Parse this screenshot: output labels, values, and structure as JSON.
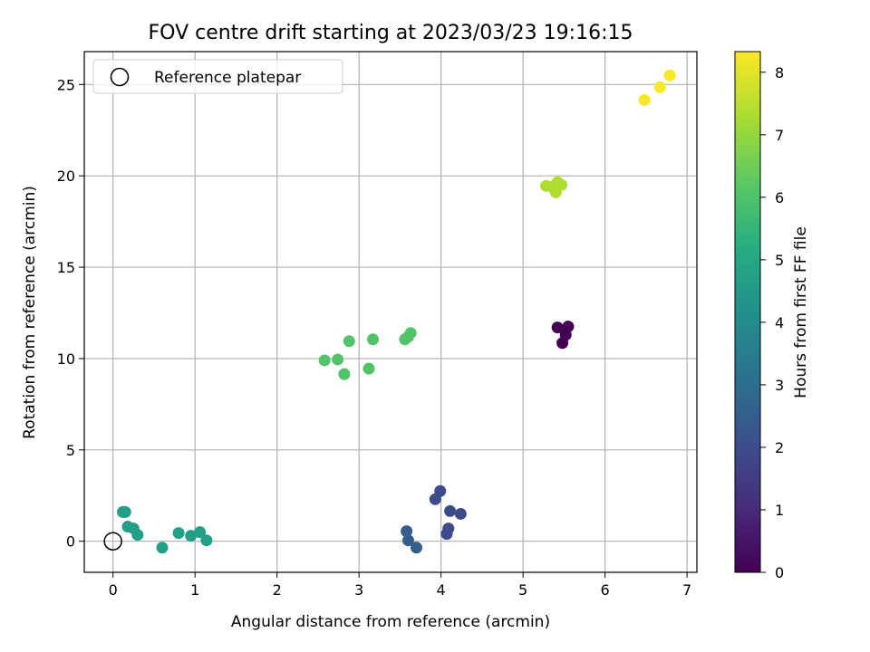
{
  "chart_data": {
    "type": "scatter",
    "title": "FOV centre drift starting at 2023/03/23 19:16:15",
    "xlabel": "Angular distance from reference (arcmin)",
    "ylabel": "Rotation from reference (arcmin)",
    "xlim": [
      -0.35,
      7.12
    ],
    "ylim": [
      -1.7,
      26.8
    ],
    "xticks": [
      0,
      1,
      2,
      3,
      4,
      5,
      6,
      7
    ],
    "yticks": [
      0,
      5,
      10,
      15,
      20,
      25
    ],
    "grid": true,
    "legend": {
      "placement": "top-left",
      "entries": [
        "Reference platepar"
      ]
    },
    "reference_point": {
      "x": 0,
      "y": 0,
      "label": "Reference platepar"
    },
    "colorbar": {
      "label": "Hours from first FF file",
      "colormap": "viridis",
      "range": [
        0,
        8.33
      ],
      "ticks": [
        0,
        1,
        2,
        3,
        4,
        5,
        6,
        7,
        8
      ]
    },
    "points": [
      {
        "x": 5.42,
        "y": 11.7,
        "hours": 0.0
      },
      {
        "x": 5.55,
        "y": 11.75,
        "hours": 0.0
      },
      {
        "x": 5.52,
        "y": 11.3,
        "hours": 0.0
      },
      {
        "x": 5.48,
        "y": 10.85,
        "hours": 0.0
      },
      {
        "x": 3.93,
        "y": 2.3,
        "hours": 1.95
      },
      {
        "x": 3.99,
        "y": 2.75,
        "hours": 1.95
      },
      {
        "x": 4.11,
        "y": 1.65,
        "hours": 1.95
      },
      {
        "x": 4.24,
        "y": 1.5,
        "hours": 1.95
      },
      {
        "x": 4.09,
        "y": 0.7,
        "hours": 1.95
      },
      {
        "x": 4.07,
        "y": 0.4,
        "hours": 1.95
      },
      {
        "x": 3.58,
        "y": 0.55,
        "hours": 2.5
      },
      {
        "x": 3.6,
        "y": 0.05,
        "hours": 2.5
      },
      {
        "x": 3.7,
        "y": -0.35,
        "hours": 2.5
      },
      {
        "x": 0.12,
        "y": 1.6,
        "hours": 4.7
      },
      {
        "x": 0.15,
        "y": 1.6,
        "hours": 4.7
      },
      {
        "x": 0.18,
        "y": 0.8,
        "hours": 4.7
      },
      {
        "x": 0.25,
        "y": 0.7,
        "hours": 4.7
      },
      {
        "x": 0.3,
        "y": 0.35,
        "hours": 4.7
      },
      {
        "x": 0.6,
        "y": -0.35,
        "hours": 4.7
      },
      {
        "x": 0.8,
        "y": 0.45,
        "hours": 4.7
      },
      {
        "x": 0.95,
        "y": 0.3,
        "hours": 4.7
      },
      {
        "x": 1.06,
        "y": 0.5,
        "hours": 4.7
      },
      {
        "x": 1.14,
        "y": 0.05,
        "hours": 4.7
      },
      {
        "x": 2.58,
        "y": 9.9,
        "hours": 6.05
      },
      {
        "x": 2.74,
        "y": 9.95,
        "hours": 6.05
      },
      {
        "x": 2.82,
        "y": 9.15,
        "hours": 6.05
      },
      {
        "x": 2.88,
        "y": 10.95,
        "hours": 6.05
      },
      {
        "x": 3.12,
        "y": 9.45,
        "hours": 6.05
      },
      {
        "x": 3.17,
        "y": 11.05,
        "hours": 6.05
      },
      {
        "x": 3.56,
        "y": 11.05,
        "hours": 6.05
      },
      {
        "x": 3.6,
        "y": 11.2,
        "hours": 6.05
      },
      {
        "x": 3.63,
        "y": 11.4,
        "hours": 6.05
      },
      {
        "x": 5.28,
        "y": 19.45,
        "hours": 7.35
      },
      {
        "x": 5.35,
        "y": 19.4,
        "hours": 7.35
      },
      {
        "x": 5.4,
        "y": 19.1,
        "hours": 7.35
      },
      {
        "x": 5.42,
        "y": 19.65,
        "hours": 7.35
      },
      {
        "x": 5.47,
        "y": 19.5,
        "hours": 7.35
      },
      {
        "x": 6.48,
        "y": 24.15,
        "hours": 8.3
      },
      {
        "x": 6.67,
        "y": 24.85,
        "hours": 8.3
      },
      {
        "x": 6.79,
        "y": 25.5,
        "hours": 8.3
      }
    ]
  }
}
